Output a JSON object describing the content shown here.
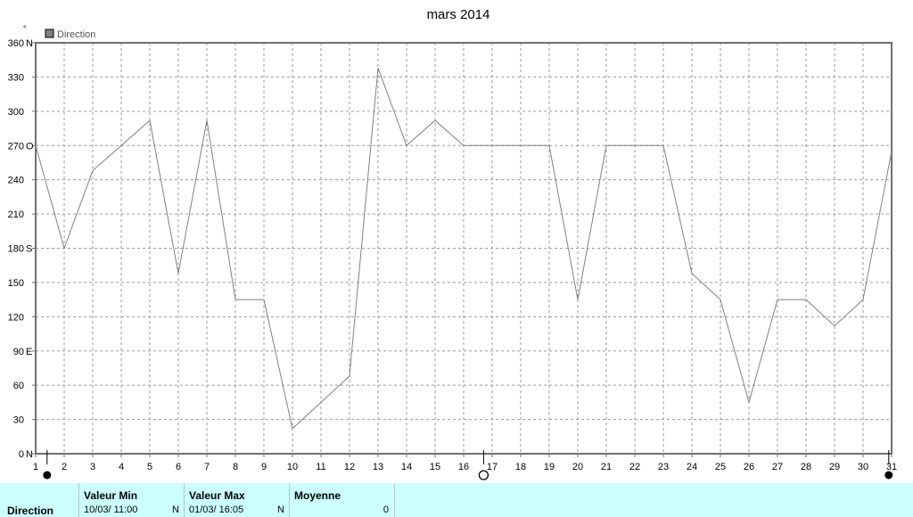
{
  "chart_data": {
    "type": "line",
    "title": "mars 2014",
    "ylabel": "°",
    "ylim": [
      0,
      360
    ],
    "yticks": [
      {
        "v": 0,
        "label": "0",
        "dir": "N"
      },
      {
        "v": 30,
        "label": "30",
        "dir": ""
      },
      {
        "v": 60,
        "label": "60",
        "dir": ""
      },
      {
        "v": 90,
        "label": "90",
        "dir": "E"
      },
      {
        "v": 120,
        "label": "120",
        "dir": ""
      },
      {
        "v": 150,
        "label": "150",
        "dir": ""
      },
      {
        "v": 180,
        "label": "180",
        "dir": "S"
      },
      {
        "v": 210,
        "label": "210",
        "dir": ""
      },
      {
        "v": 240,
        "label": "240",
        "dir": ""
      },
      {
        "v": 270,
        "label": "270",
        "dir": "O"
      },
      {
        "v": 300,
        "label": "300",
        "dir": ""
      },
      {
        "v": 330,
        "label": "330",
        "dir": ""
      },
      {
        "v": 360,
        "label": "360",
        "dir": "N"
      }
    ],
    "xlim": [
      1,
      31
    ],
    "x_ticks": [
      "1",
      "2",
      "3",
      "4",
      "5",
      "6",
      "7",
      "8",
      "9",
      "10",
      "11",
      "12",
      "13",
      "14",
      "15",
      "16",
      "17",
      "18",
      "19",
      "20",
      "21",
      "22",
      "23",
      "24",
      "25",
      "26",
      "27",
      "28",
      "29",
      "30",
      "31"
    ],
    "grid": true,
    "legend": "top-left",
    "series": [
      {
        "name": "Direction",
        "color": "#808080",
        "x": [
          1,
          2,
          3,
          4,
          5,
          6,
          7,
          8,
          9,
          10,
          11,
          12,
          13,
          14,
          15,
          16,
          17,
          18,
          19,
          20,
          21,
          22,
          23,
          24,
          25,
          26,
          27,
          28,
          29,
          30,
          31
        ],
        "y": [
          270,
          180,
          248,
          270,
          292,
          158,
          292,
          135,
          135,
          22,
          45,
          68,
          338,
          270,
          292,
          270,
          270,
          270,
          270,
          135,
          270,
          270,
          270,
          158,
          135,
          45,
          135,
          135,
          112,
          135,
          265
        ]
      }
    ],
    "moon_phases": [
      {
        "x": 1.4,
        "phase": "new"
      },
      {
        "x": 16.7,
        "phase": "full"
      },
      {
        "x": 30.9,
        "phase": "new"
      }
    ]
  },
  "stats": {
    "row_label": "Direction",
    "columns": [
      {
        "header": "Valeur Min",
        "value": "10/03/  11:00",
        "unit": "N"
      },
      {
        "header": "Valeur Max",
        "value": "01/03/  16:05",
        "unit": "N"
      },
      {
        "header": "Moyenne",
        "value": "",
        "unit": "0"
      }
    ]
  }
}
